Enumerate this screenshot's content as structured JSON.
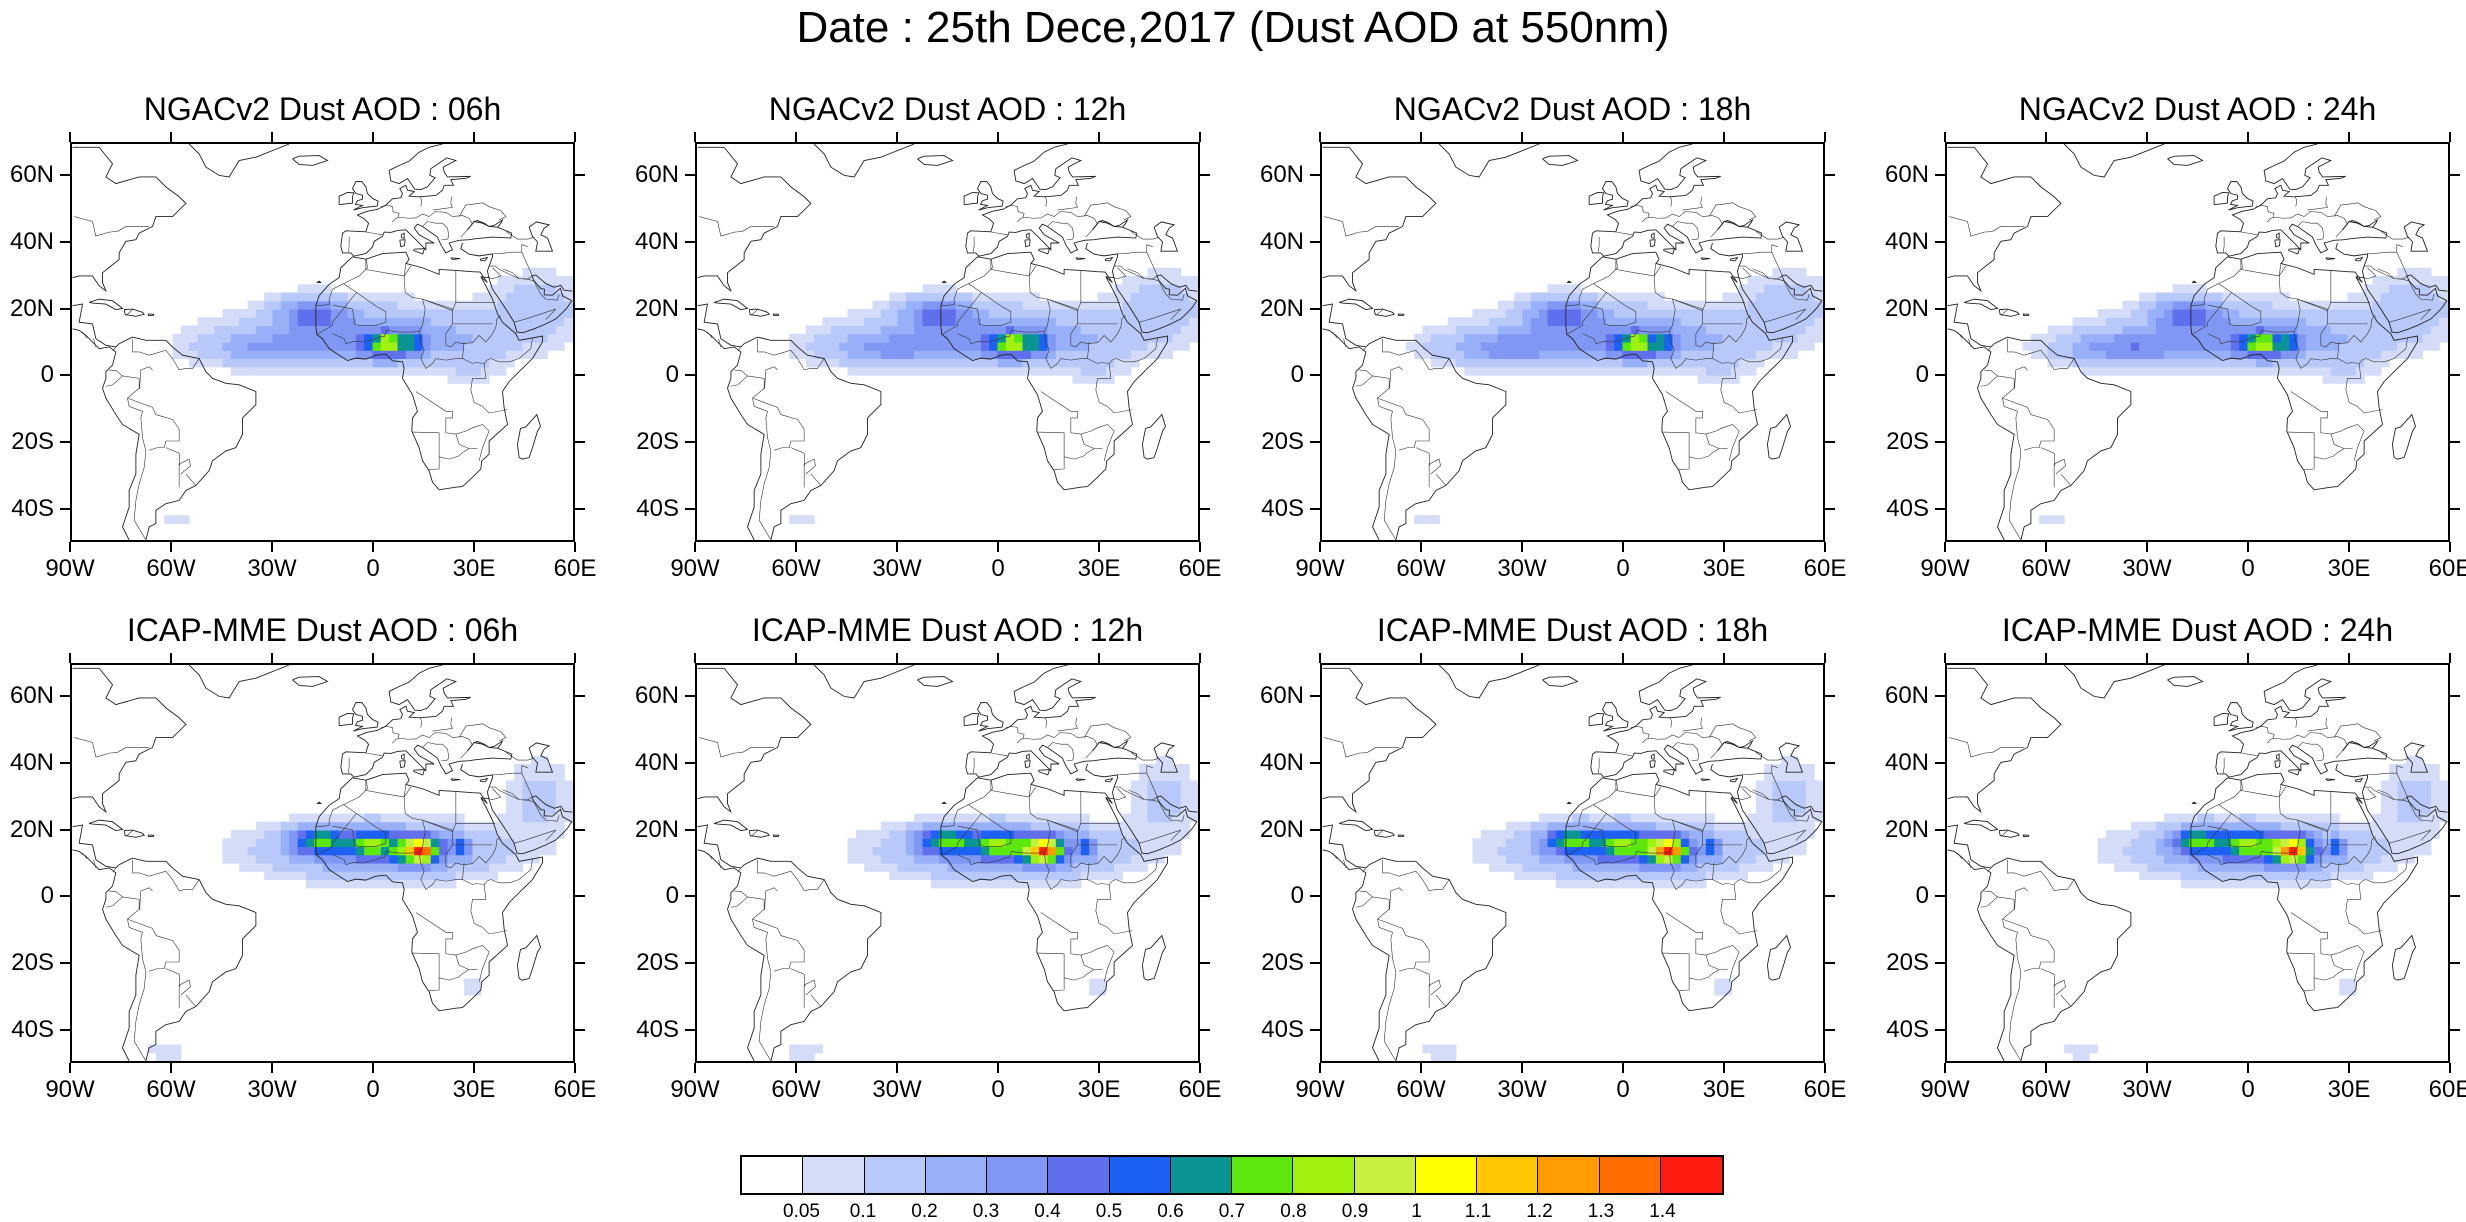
{
  "title": "Date : 25th Dece,2017 (Dust AOD at 550nm)",
  "panels": [
    {
      "title": "NGACv2 Dust AOD : 06h",
      "model": "ngac",
      "t": 0
    },
    {
      "title": "NGACv2 Dust AOD : 12h",
      "model": "ngac",
      "t": 1
    },
    {
      "title": "NGACv2 Dust AOD : 18h",
      "model": "ngac",
      "t": 2
    },
    {
      "title": "NGACv2 Dust AOD : 24h",
      "model": "ngac",
      "t": 3
    },
    {
      "title": "ICAP-MME Dust AOD : 06h",
      "model": "icap",
      "t": 0
    },
    {
      "title": "ICAP-MME Dust AOD : 12h",
      "model": "icap",
      "t": 1
    },
    {
      "title": "ICAP-MME Dust AOD : 18h",
      "model": "icap",
      "t": 2
    },
    {
      "title": "ICAP-MME Dust AOD : 24h",
      "model": "icap",
      "t": 3
    }
  ],
  "lat_labels": [
    "60N",
    "40N",
    "20N",
    "0",
    "20S",
    "40S"
  ],
  "lat_values": [
    60,
    40,
    20,
    0,
    -20,
    -40
  ],
  "lon_labels": [
    "90W",
    "60W",
    "30W",
    "0",
    "30E",
    "60E"
  ],
  "lon_values": [
    -90,
    -60,
    -30,
    0,
    30,
    60
  ],
  "extent": {
    "lon_min": -90,
    "lon_max": 60,
    "lat_min": -50,
    "lat_max": 70
  },
  "colorbar": {
    "colors": [
      "#ffffff",
      "#d4dcf8",
      "#b8c8f8",
      "#98b0f8",
      "#8098f4",
      "#6070ec",
      "#1c60f4",
      "#0a9494",
      "#5ce80c",
      "#a0f010",
      "#c8f040",
      "#ffff00",
      "#ffc800",
      "#ff9c00",
      "#ff6c00",
      "#ff1c10"
    ],
    "labels": [
      "0.05",
      "0.1",
      "0.2",
      "0.3",
      "0.4",
      "0.5",
      "0.6",
      "0.7",
      "0.8",
      "0.9",
      "1",
      "1.1",
      "1.2",
      "1.3",
      "1.4"
    ]
  }
}
